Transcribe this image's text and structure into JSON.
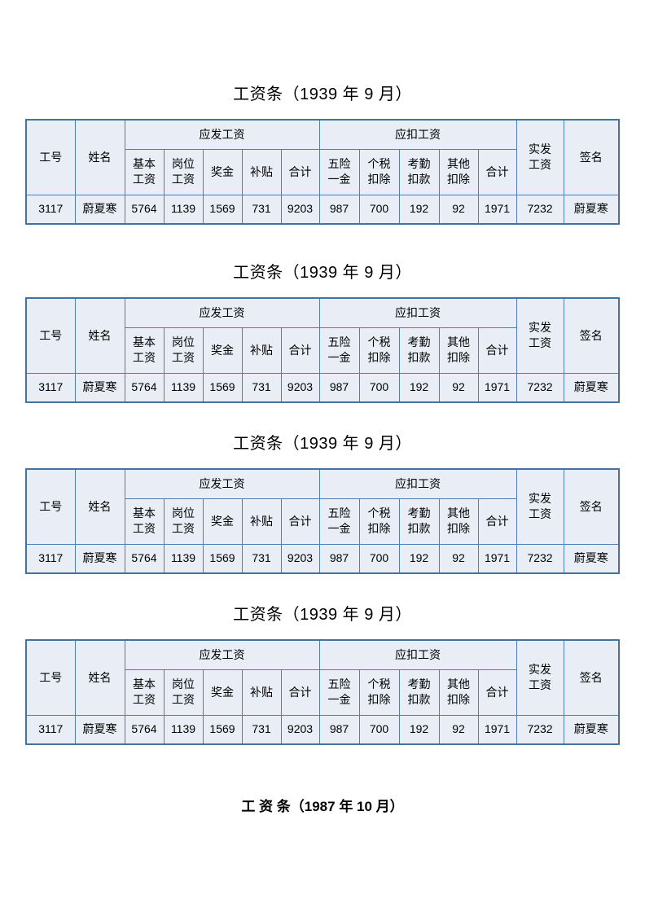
{
  "document": {
    "colors": {
      "table_fill": "#e8edf6",
      "table_border": "#4f7cba",
      "page_background": "#ffffff",
      "text": "#000000"
    },
    "sections": [
      {
        "title": "工资条（1939 年 9 月）"
      },
      {
        "title": "工资条（1939 年 9 月）"
      },
      {
        "title": "工资条（1939 年 9 月）"
      },
      {
        "title": "工资条（1939 年 9 月）"
      }
    ],
    "next_month_title": "工 资 条（1987 年 10 月）",
    "salary_table": {
      "header": {
        "employee_id": "工号",
        "name": "姓名",
        "payable_group": "应发工资",
        "deduction_group": "应扣工资",
        "payable_cols": [
          [
            "基本",
            "工资"
          ],
          [
            "岗位",
            "工资"
          ],
          [
            "奖金"
          ],
          [
            "补贴"
          ],
          [
            "合计"
          ]
        ],
        "deduction_cols": [
          [
            "五险",
            "一金"
          ],
          [
            "个税",
            "扣除"
          ],
          [
            "考勤",
            "扣款"
          ],
          [
            "其他",
            "扣除"
          ],
          [
            "合计"
          ]
        ],
        "net_pay": [
          "实发",
          "工资"
        ],
        "signature": "签名"
      },
      "row": {
        "employee_id": "3117",
        "name": "蔚夏寒",
        "basic_salary": "5764",
        "post_salary": "1139",
        "bonus": "1569",
        "allowance": "731",
        "payable_total": "9203",
        "social_insurance": "987",
        "income_tax": "700",
        "attendance_deduction": "192",
        "other_deduction": "92",
        "deduction_total": "1971",
        "net_pay": "7232",
        "signature": "蔚夏寒"
      }
    }
  }
}
